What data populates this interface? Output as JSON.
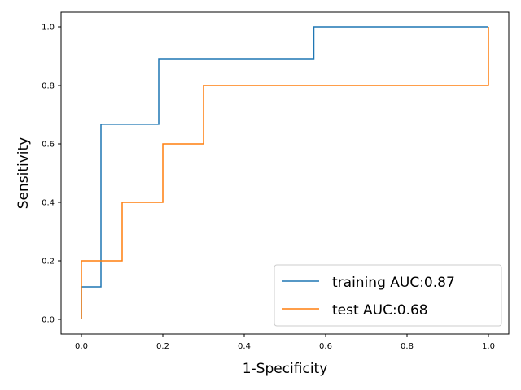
{
  "chart_data": {
    "type": "line",
    "title": "",
    "xlabel": "1-Specificity",
    "ylabel": "Sensitivity",
    "xlim": [
      -0.05,
      1.05
    ],
    "ylim": [
      -0.05,
      1.05
    ],
    "xticks": [
      0.0,
      0.2,
      0.4,
      0.6,
      0.8,
      1.0
    ],
    "yticks": [
      0.0,
      0.2,
      0.4,
      0.6,
      0.8,
      1.0
    ],
    "xtick_labels": [
      "0.0",
      "0.2",
      "0.4",
      "0.6",
      "0.8",
      "1.0"
    ],
    "ytick_labels": [
      "0.0",
      "0.2",
      "0.4",
      "0.6",
      "0.8",
      "1.0"
    ],
    "grid": false,
    "legend_position": "lower-right",
    "series": [
      {
        "name": "training AUC:0.87",
        "color": "#1f77b4",
        "x": [
          0.0,
          0.0,
          0.048,
          0.048,
          0.19,
          0.19,
          0.571,
          0.571,
          1.0
        ],
        "y": [
          0.0,
          0.111,
          0.111,
          0.667,
          0.667,
          0.889,
          0.889,
          1.0,
          1.0
        ]
      },
      {
        "name": "test AUC:0.68",
        "color": "#ff7f0e",
        "x": [
          0.0,
          0.0,
          0.1,
          0.1,
          0.2,
          0.2,
          0.3,
          0.3,
          1.0,
          1.0
        ],
        "y": [
          0.0,
          0.2,
          0.2,
          0.4,
          0.4,
          0.6,
          0.6,
          0.8,
          0.8,
          1.0
        ]
      }
    ]
  }
}
